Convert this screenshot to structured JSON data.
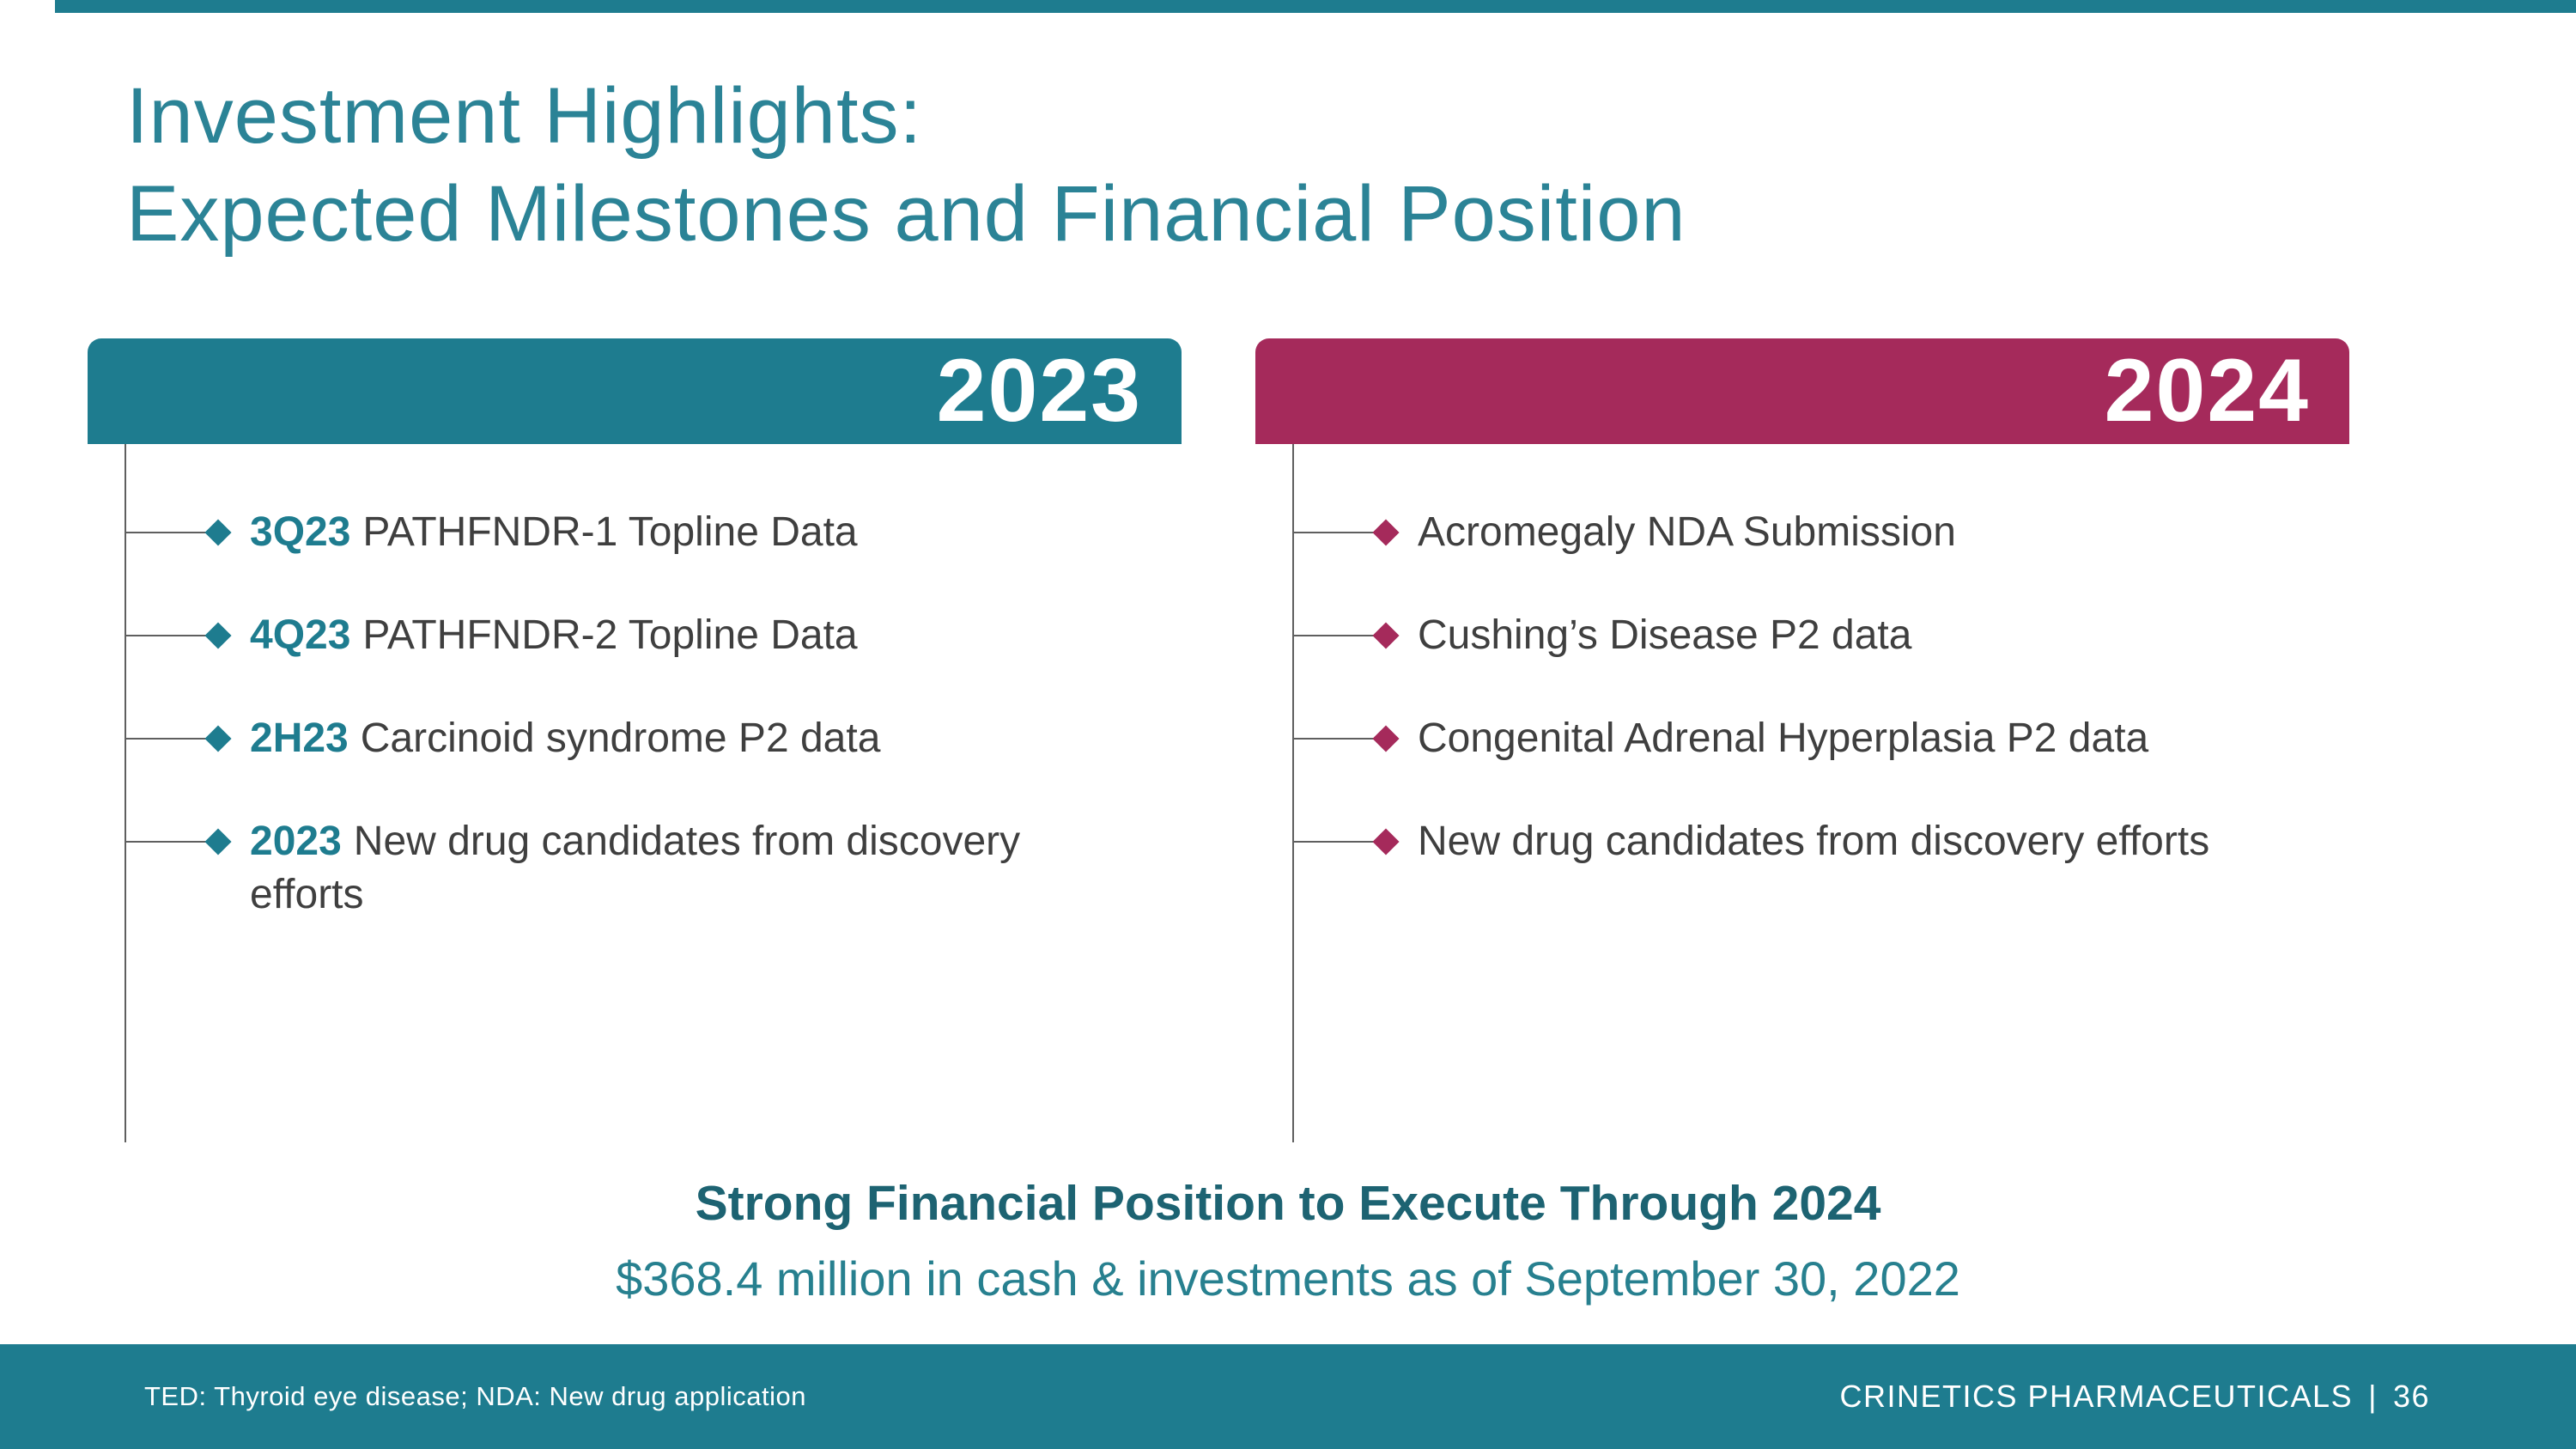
{
  "slide": {
    "title_line1": "Investment Highlights:",
    "title_line2": "Expected Milestones and Financial Position",
    "columns": [
      {
        "year": "2023",
        "items": [
          {
            "label": "3Q23",
            "text": "PATHFNDR-1 Topline Data"
          },
          {
            "label": "4Q23",
            "text": "PATHFNDR-2 Topline Data"
          },
          {
            "label": "2H23",
            "text": "Carcinoid syndrome P2 data"
          },
          {
            "label": "2023",
            "text": "New drug candidates from discovery efforts"
          }
        ]
      },
      {
        "year": "2024",
        "items": [
          {
            "text": "Acromegaly NDA Submission"
          },
          {
            "text": "Cushing’s Disease P2 data"
          },
          {
            "text": "Congenital Adrenal Hyperplasia P2 data"
          },
          {
            "text": "New drug candidates from discovery efforts"
          }
        ]
      }
    ],
    "financial": {
      "headline": "Strong Financial Position to Execute Through 2024",
      "detail": "$368.4 million in cash & investments as of September 30, 2022"
    },
    "footer": {
      "note": "TED: Thyroid eye disease; NDA: New drug application",
      "brand_name": "CRINETICS PHARMACEUTICALS",
      "separator": "|",
      "page_number": "36"
    },
    "colors": {
      "teal": "#1E7C8F",
      "magenta": "#A52A5B",
      "title_teal": "#2B8396"
    }
  }
}
